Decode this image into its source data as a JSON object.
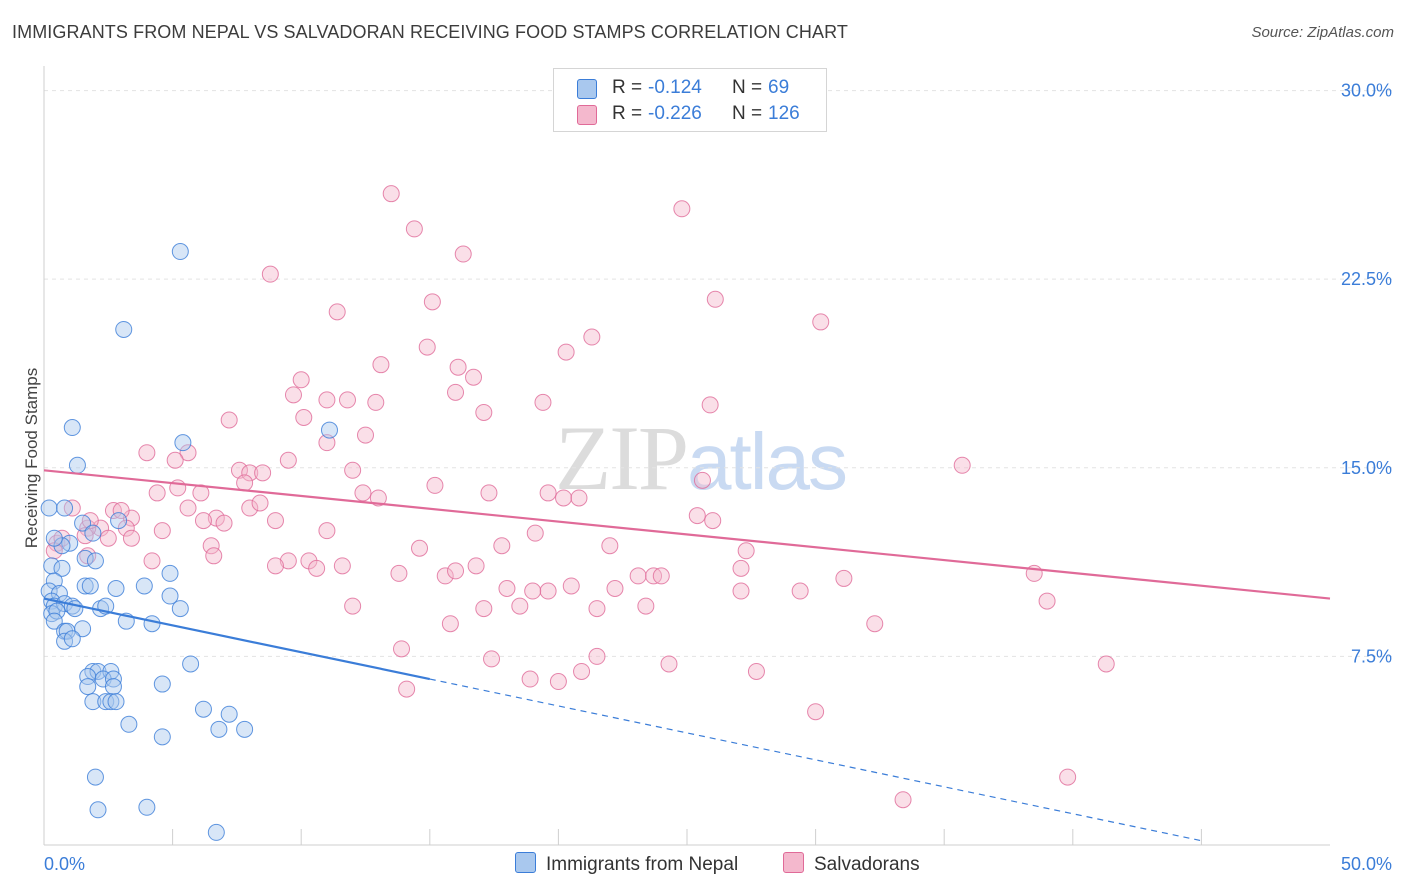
{
  "title": "IMMIGRANTS FROM NEPAL VS SALVADORAN RECEIVING FOOD STAMPS CORRELATION CHART",
  "source": "Source: ZipAtlas.com",
  "watermark": {
    "zip": "ZIP",
    "atlas": "atlas"
  },
  "legend": [
    {
      "r_label": "R =",
      "r_value": "-0.124",
      "n_label": "N =",
      "n_value": "69"
    },
    {
      "r_label": "R =",
      "r_value": "-0.226",
      "n_label": "N =",
      "n_value": "126"
    }
  ],
  "bottom_legend": [
    "Immigrants from Nepal",
    "Salvadorans"
  ],
  "colors": {
    "blue": "#3b7dd8",
    "blue_fill": "#a9c8ee",
    "pink": "#e06a98",
    "pink_fill": "#f4b8cd",
    "grid": "#e3e3e3"
  },
  "chart_data": {
    "type": "scatter",
    "title": "IMMIGRANTS FROM NEPAL VS SALVADORAN RECEIVING FOOD STAMPS CORRELATION CHART",
    "xlabel": "",
    "ylabel": "Receiving Food Stamps",
    "xlim": [
      0,
      50
    ],
    "ylim": [
      0,
      30.5
    ],
    "y_ticks": [
      7.5,
      15.0,
      22.5,
      30.0
    ],
    "y_tick_labels": [
      "7.5%",
      "15.0%",
      "22.5%",
      "30.0%"
    ],
    "x_tick_labels": [
      "0.0%",
      "50.0%"
    ],
    "grid": true,
    "legend_position": "top-center",
    "series": [
      {
        "name": "Immigrants from Nepal",
        "color": "#3b7dd8",
        "r": -0.124,
        "n": 69,
        "trend": {
          "x0": 0,
          "y0": 9.8,
          "x1": 15,
          "y1": 6.6,
          "dashed_to_x": 50,
          "dashed_to_y": -0.9
        },
        "points": [
          [
            5.3,
            23.6
          ],
          [
            3.1,
            20.5
          ],
          [
            1.1,
            16.6
          ],
          [
            5.4,
            16.0
          ],
          [
            11.1,
            16.5
          ],
          [
            1.3,
            15.1
          ],
          [
            0.2,
            13.4
          ],
          [
            0.8,
            13.4
          ],
          [
            1.5,
            12.8
          ],
          [
            2.9,
            12.9
          ],
          [
            1.9,
            12.4
          ],
          [
            1.0,
            12.0
          ],
          [
            0.7,
            11.9
          ],
          [
            0.3,
            11.1
          ],
          [
            1.6,
            11.4
          ],
          [
            2.0,
            11.3
          ],
          [
            0.7,
            11.0
          ],
          [
            0.4,
            10.5
          ],
          [
            0.2,
            10.1
          ],
          [
            0.6,
            10.0
          ],
          [
            1.6,
            10.3
          ],
          [
            1.8,
            10.3
          ],
          [
            2.8,
            10.2
          ],
          [
            3.9,
            10.3
          ],
          [
            4.9,
            10.8
          ],
          [
            4.9,
            9.9
          ],
          [
            0.3,
            9.7
          ],
          [
            0.4,
            9.5
          ],
          [
            0.8,
            9.6
          ],
          [
            1.1,
            9.5
          ],
          [
            1.2,
            9.4
          ],
          [
            0.3,
            9.2
          ],
          [
            0.5,
            9.3
          ],
          [
            2.2,
            9.4
          ],
          [
            5.3,
            9.4
          ],
          [
            0.4,
            8.9
          ],
          [
            3.2,
            8.9
          ],
          [
            4.2,
            8.8
          ],
          [
            0.8,
            8.5
          ],
          [
            0.9,
            8.5
          ],
          [
            1.5,
            8.6
          ],
          [
            0.8,
            8.1
          ],
          [
            5.7,
            7.2
          ],
          [
            1.9,
            6.9
          ],
          [
            2.1,
            6.9
          ],
          [
            2.6,
            6.9
          ],
          [
            1.7,
            6.7
          ],
          [
            2.3,
            6.6
          ],
          [
            2.7,
            6.6
          ],
          [
            2.7,
            6.3
          ],
          [
            4.6,
            6.4
          ],
          [
            1.7,
            6.3
          ],
          [
            1.9,
            5.7
          ],
          [
            2.4,
            5.7
          ],
          [
            2.6,
            5.7
          ],
          [
            2.8,
            5.7
          ],
          [
            6.2,
            5.4
          ],
          [
            7.2,
            5.2
          ],
          [
            3.3,
            4.8
          ],
          [
            6.8,
            4.6
          ],
          [
            7.8,
            4.6
          ],
          [
            4.6,
            4.3
          ],
          [
            2.0,
            2.7
          ],
          [
            2.1,
            1.4
          ],
          [
            4.0,
            1.5
          ],
          [
            6.7,
            0.5
          ],
          [
            0.4,
            12.2
          ],
          [
            1.1,
            8.2
          ],
          [
            2.4,
            9.5
          ]
        ]
      },
      {
        "name": "Salvadorans",
        "color": "#e06a98",
        "r": -0.226,
        "n": 126,
        "trend": {
          "x0": 0,
          "y0": 14.9,
          "x1": 50,
          "y1": 9.8
        },
        "points": [
          [
            13.5,
            25.9
          ],
          [
            24.8,
            25.3
          ],
          [
            14.4,
            24.5
          ],
          [
            16.3,
            23.5
          ],
          [
            8.8,
            22.7
          ],
          [
            15.1,
            21.6
          ],
          [
            11.4,
            21.2
          ],
          [
            26.1,
            21.7
          ],
          [
            30.2,
            20.8
          ],
          [
            21.3,
            20.2
          ],
          [
            20.3,
            19.6
          ],
          [
            14.9,
            19.8
          ],
          [
            13.1,
            19.1
          ],
          [
            16.1,
            19.0
          ],
          [
            16.7,
            18.6
          ],
          [
            10.0,
            18.5
          ],
          [
            9.7,
            17.9
          ],
          [
            16.0,
            18.0
          ],
          [
            11.0,
            17.7
          ],
          [
            11.8,
            17.7
          ],
          [
            12.9,
            17.6
          ],
          [
            19.4,
            17.6
          ],
          [
            25.9,
            17.5
          ],
          [
            10.1,
            17.0
          ],
          [
            17.1,
            17.2
          ],
          [
            7.2,
            16.9
          ],
          [
            12.5,
            16.3
          ],
          [
            11.0,
            16.0
          ],
          [
            4.0,
            15.6
          ],
          [
            5.6,
            15.6
          ],
          [
            5.1,
            15.3
          ],
          [
            9.5,
            15.3
          ],
          [
            35.7,
            15.1
          ],
          [
            7.6,
            14.9
          ],
          [
            8.0,
            14.8
          ],
          [
            8.5,
            14.8
          ],
          [
            12.0,
            14.9
          ],
          [
            15.2,
            14.3
          ],
          [
            25.6,
            14.5
          ],
          [
            7.8,
            14.4
          ],
          [
            4.4,
            14.0
          ],
          [
            6.1,
            14.0
          ],
          [
            12.4,
            14.0
          ],
          [
            13.0,
            13.8
          ],
          [
            17.3,
            14.0
          ],
          [
            19.6,
            14.0
          ],
          [
            20.2,
            13.8
          ],
          [
            20.8,
            13.8
          ],
          [
            5.6,
            13.4
          ],
          [
            8.0,
            13.4
          ],
          [
            8.4,
            13.6
          ],
          [
            1.1,
            13.4
          ],
          [
            2.7,
            13.3
          ],
          [
            3.4,
            13.0
          ],
          [
            6.7,
            13.0
          ],
          [
            25.4,
            13.1
          ],
          [
            26.0,
            12.9
          ],
          [
            7.0,
            12.8
          ],
          [
            2.2,
            12.6
          ],
          [
            3.2,
            12.6
          ],
          [
            1.7,
            12.6
          ],
          [
            11.0,
            12.5
          ],
          [
            19.1,
            12.4
          ],
          [
            4.6,
            12.5
          ],
          [
            1.6,
            12.3
          ],
          [
            2.5,
            12.2
          ],
          [
            3.4,
            12.2
          ],
          [
            6.5,
            11.9
          ],
          [
            14.6,
            11.8
          ],
          [
            17.8,
            11.9
          ],
          [
            22.0,
            11.9
          ],
          [
            27.3,
            11.7
          ],
          [
            1.7,
            11.5
          ],
          [
            4.2,
            11.3
          ],
          [
            6.6,
            11.5
          ],
          [
            9.5,
            11.3
          ],
          [
            10.3,
            11.3
          ],
          [
            11.6,
            11.1
          ],
          [
            9.0,
            11.1
          ],
          [
            16.8,
            11.1
          ],
          [
            27.1,
            11.0
          ],
          [
            10.6,
            11.0
          ],
          [
            13.8,
            10.8
          ],
          [
            15.6,
            10.7
          ],
          [
            23.1,
            10.7
          ],
          [
            23.7,
            10.7
          ],
          [
            24.0,
            10.7
          ],
          [
            29.4,
            10.1
          ],
          [
            31.1,
            10.6
          ],
          [
            38.5,
            10.8
          ],
          [
            18.0,
            10.2
          ],
          [
            19.6,
            10.1
          ],
          [
            20.5,
            10.3
          ],
          [
            22.2,
            10.2
          ],
          [
            27.1,
            10.1
          ],
          [
            12.0,
            9.5
          ],
          [
            17.1,
            9.4
          ],
          [
            18.5,
            9.5
          ],
          [
            21.5,
            9.4
          ],
          [
            23.4,
            9.5
          ],
          [
            39.0,
            9.7
          ],
          [
            15.8,
            8.8
          ],
          [
            32.3,
            8.8
          ],
          [
            13.9,
            7.8
          ],
          [
            17.4,
            7.4
          ],
          [
            21.5,
            7.5
          ],
          [
            24.3,
            7.2
          ],
          [
            27.7,
            6.9
          ],
          [
            20.9,
            6.9
          ],
          [
            18.9,
            6.6
          ],
          [
            20.0,
            6.5
          ],
          [
            14.1,
            6.2
          ],
          [
            41.3,
            7.2
          ],
          [
            30.0,
            5.3
          ],
          [
            39.8,
            2.7
          ],
          [
            33.4,
            1.8
          ],
          [
            0.5,
            12.0
          ],
          [
            0.7,
            12.2
          ],
          [
            0.4,
            11.7
          ],
          [
            1.8,
            12.9
          ],
          [
            3.0,
            13.3
          ],
          [
            5.2,
            14.2
          ],
          [
            6.2,
            12.9
          ],
          [
            9.0,
            12.9
          ],
          [
            16.0,
            10.9
          ],
          [
            19.0,
            10.1
          ]
        ]
      }
    ]
  }
}
